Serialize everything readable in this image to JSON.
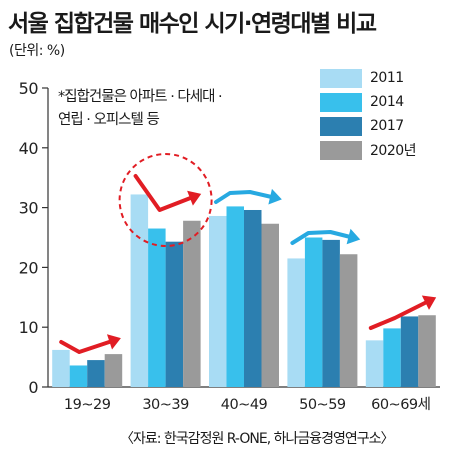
{
  "header": {
    "title": "서울 집합건물 매수인 시기·연령대별 비교",
    "unit": "(단위: %)"
  },
  "note": {
    "line1": "*집합건물은 아파트 · 다세대 ·",
    "line2": "연립 · 오피스텔 등"
  },
  "source": "〈자료: 한국감정원 R-ONE, 하나금융경영연구소〉",
  "chart_data": {
    "type": "bar",
    "title": "서울 집합건물 매수인 시기·연령대별 비교",
    "ylabel": "(단위: %)",
    "xlabel": "",
    "ylim": [
      0,
      50
    ],
    "yticks": [
      0,
      10,
      20,
      30,
      40,
      50
    ],
    "categories": [
      "19~29",
      "30~39",
      "40~49",
      "50~59",
      "60~69세"
    ],
    "series": [
      {
        "name": "2011",
        "color": "#a8dcf4",
        "values": [
          6.2,
          32.2,
          28.6,
          21.5,
          7.8
        ]
      },
      {
        "name": "2014",
        "color": "#38c0ec",
        "values": [
          3.6,
          26.5,
          30.2,
          25.0,
          9.8
        ]
      },
      {
        "name": "2017",
        "color": "#2c7fb0",
        "values": [
          4.5,
          24.3,
          29.6,
          24.6,
          11.8
        ]
      },
      {
        "name": "2020년",
        "color": "#9a9a9a",
        "values": [
          5.5,
          27.8,
          27.3,
          22.2,
          12.0
        ]
      }
    ],
    "grid": false,
    "legend": "top-right"
  }
}
